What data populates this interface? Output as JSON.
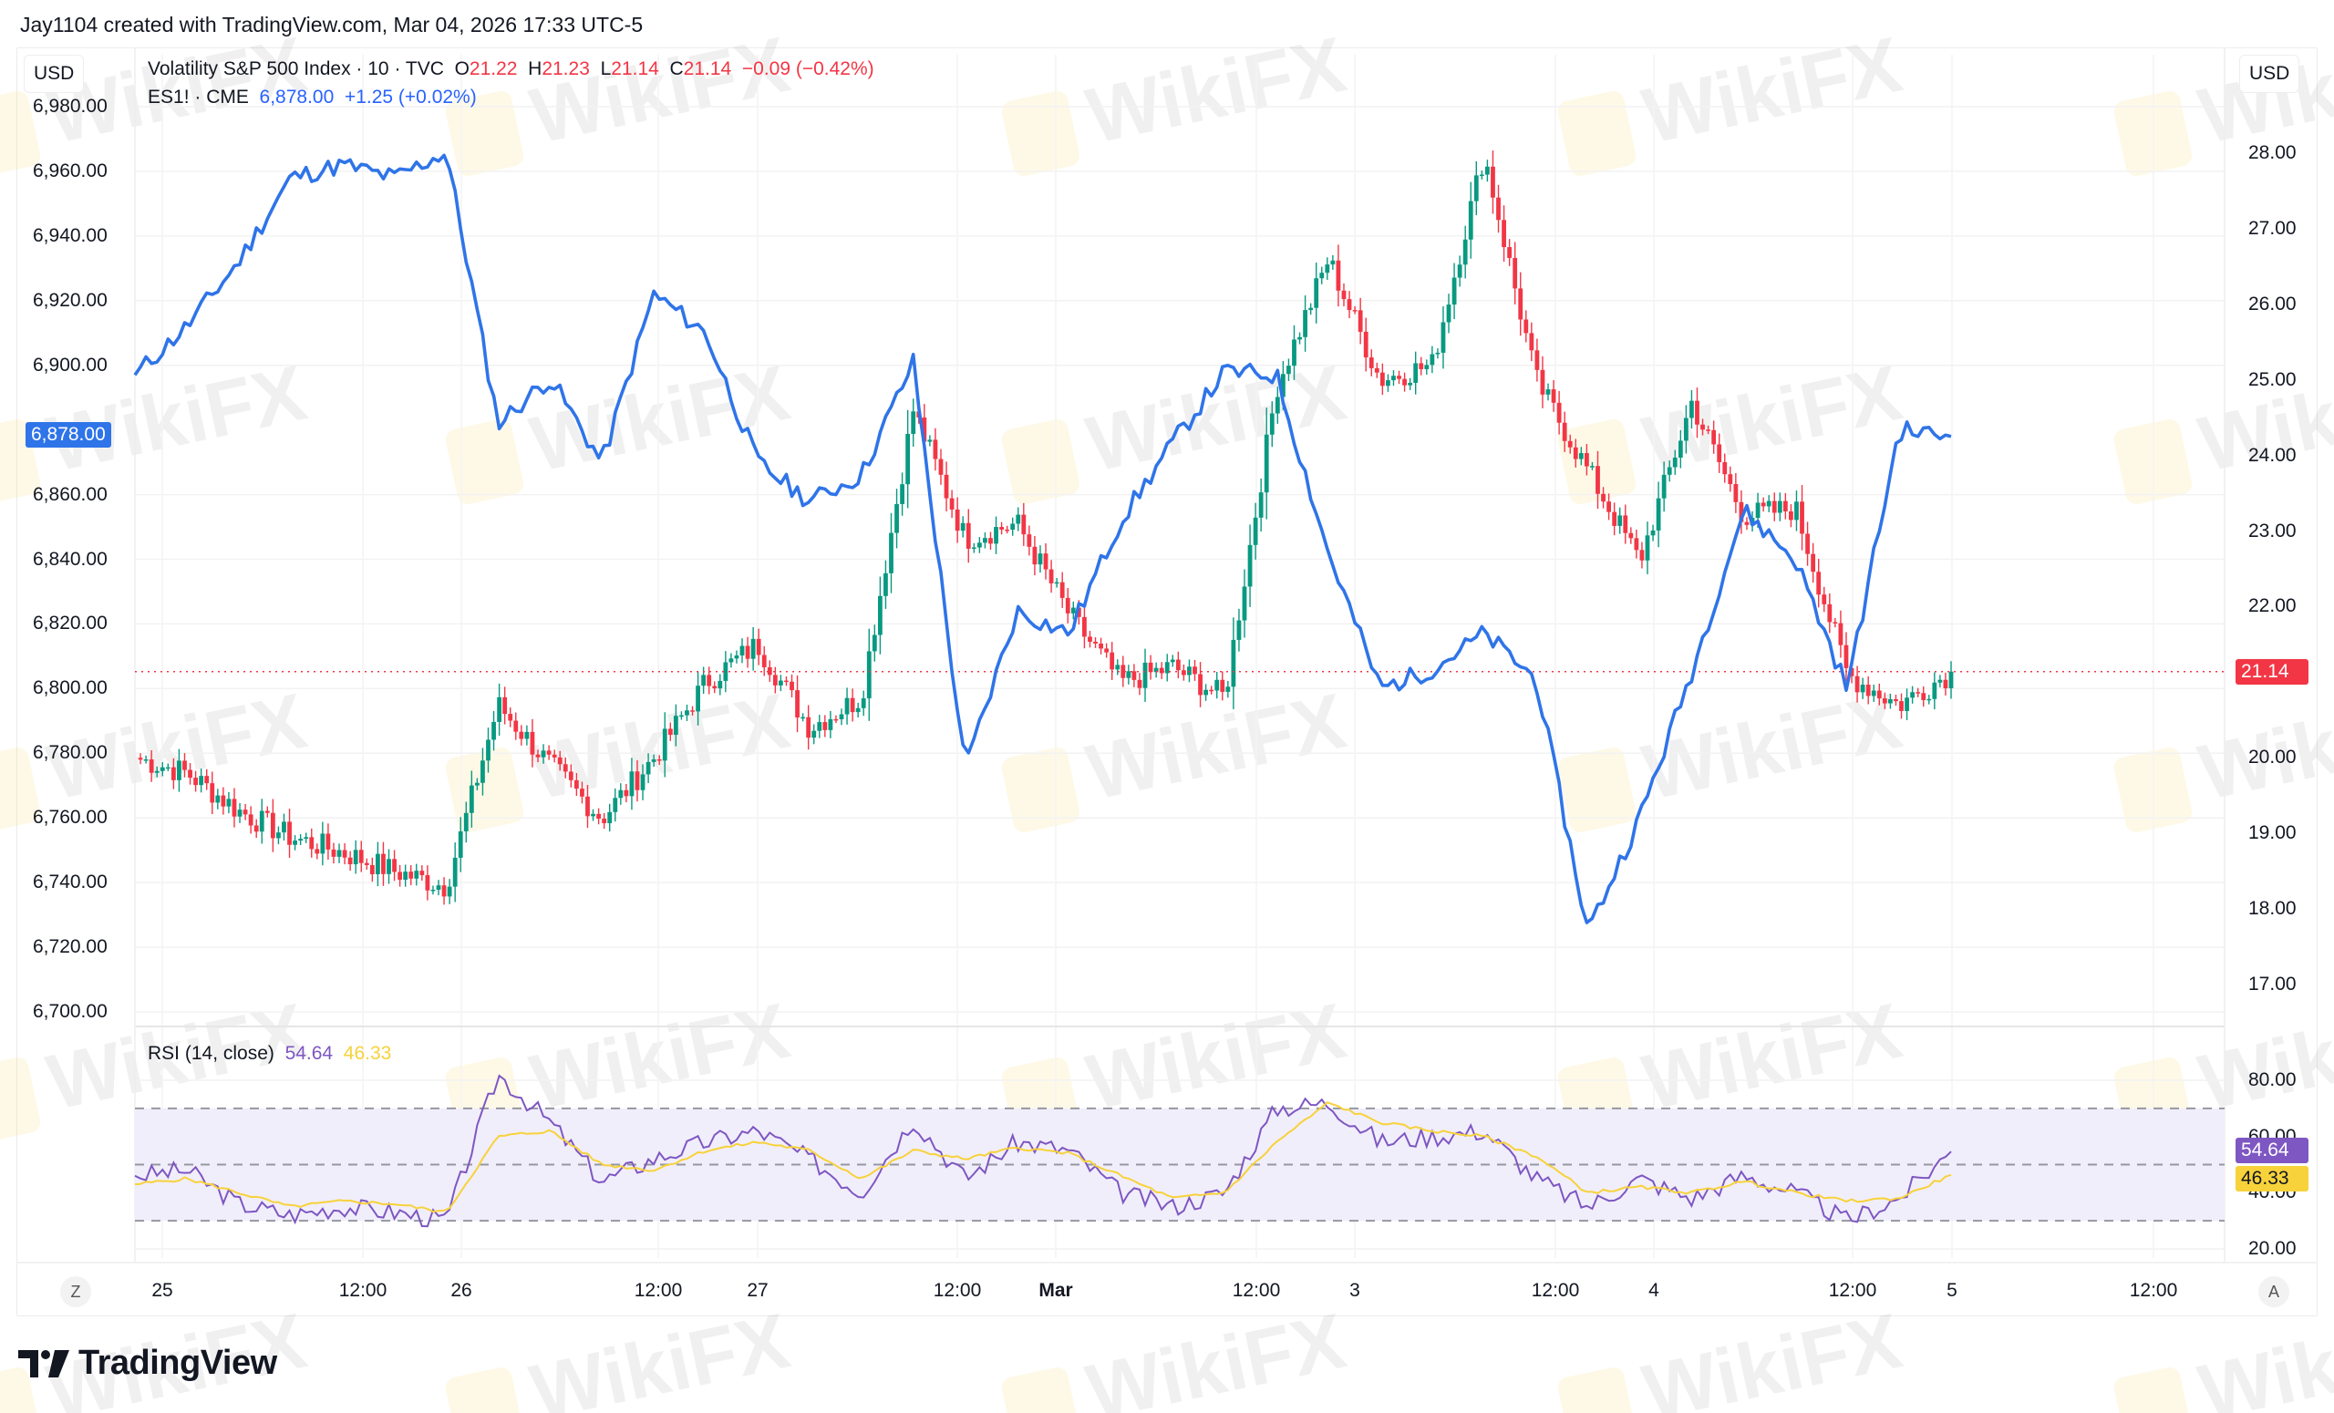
{
  "header": {
    "text": "Jay1104 created with TradingView.com, Mar 04, 2026 17:33 UTC-5"
  },
  "main_pane": {
    "left_currency": "USD",
    "right_currency": "USD",
    "legend_vix": {
      "title": "Volatility S&P 500 Index · 10 · TVC",
      "o_label": "O",
      "o_value": "21.22",
      "h_label": "H",
      "h_value": "21.23",
      "l_label": "L",
      "l_value": "21.14",
      "c_label": "C",
      "c_value": "21.14",
      "change": "−0.09 (−0.42%)"
    },
    "legend_es": {
      "title": "ES1! · CME",
      "price": "6,878.00",
      "change": "+1.25 (+0.02%)"
    },
    "left_axis_ticks": [
      "6,980.00",
      "6,960.00",
      "6,940.00",
      "6,920.00",
      "6,900.00",
      "6,860.00",
      "6,840.00",
      "6,820.00",
      "6,800.00",
      "6,780.00",
      "6,760.00",
      "6,740.00",
      "6,720.00",
      "6,700.00"
    ],
    "right_axis_ticks": [
      "28.00",
      "27.00",
      "26.00",
      "25.00",
      "24.00",
      "23.00",
      "22.00",
      "20.00",
      "19.00",
      "18.00",
      "17.00"
    ],
    "es_last_price_tag": "6,878.00",
    "vix_last_price_tag": "21.14"
  },
  "rsi_pane": {
    "title": "RSI (14, close)",
    "rsi_value": "54.64",
    "ma_value": "46.33",
    "axis_ticks": [
      "80.00",
      "60.00",
      "40.00",
      "20.00"
    ],
    "rsi_tag": "54.64",
    "ma_tag": "46.33"
  },
  "time_axis": {
    "labels": [
      {
        "text": "25",
        "bold": false
      },
      {
        "text": "12:00",
        "bold": false
      },
      {
        "text": "26",
        "bold": false
      },
      {
        "text": "12:00",
        "bold": false
      },
      {
        "text": "27",
        "bold": false
      },
      {
        "text": "12:00",
        "bold": false
      },
      {
        "text": "Mar",
        "bold": true
      },
      {
        "text": "12:00",
        "bold": false
      },
      {
        "text": "3",
        "bold": false
      },
      {
        "text": "12:00",
        "bold": false
      },
      {
        "text": "4",
        "bold": false
      },
      {
        "text": "12:00",
        "bold": false
      },
      {
        "text": "5",
        "bold": false
      },
      {
        "text": "12:00",
        "bold": false
      }
    ],
    "left_button": "Z",
    "right_button": "A"
  },
  "footer": {
    "logo_text": "TradingView"
  },
  "watermark": {
    "text": "WikiFX"
  },
  "colors": {
    "es_line": "#2f74e8",
    "candle_up": "#089981",
    "candle_down": "#f23645",
    "rsi_line": "#7e57c2",
    "rsi_ma": "#f7d23a",
    "rsi_band_fill": "#f1eefb",
    "es_tag_bg": "#2f74e8",
    "vix_tag_bg": "#f23645"
  },
  "chart_data": [
    {
      "type": "line",
      "title": "ES1! · CME (E-mini S&P 500 futures), 10-minute",
      "series_name": "ES1!",
      "axis": "left",
      "ylabel": "USD",
      "ylim": [
        6700,
        6985
      ],
      "x": [
        "Feb 25 00:00",
        "Feb 25 06:00",
        "Feb 25 12:00",
        "Feb 25 18:00",
        "Feb 26 00:00",
        "Feb 26 06:00",
        "Feb 26 09:30",
        "Feb 26 10:00",
        "Feb 26 12:00",
        "Feb 26 15:00",
        "Feb 27 00:00",
        "Feb 27 06:00",
        "Feb 27 09:30",
        "Feb 27 12:00",
        "Feb 27 16:00",
        "Mar 1 18:00",
        "Mar 2 00:00",
        "Mar 2 06:00",
        "Mar 2 09:30",
        "Mar 2 12:00",
        "Mar 2 15:00",
        "Mar 2 16:00",
        "Mar 3 00:00",
        "Mar 3 03:00",
        "Mar 3 06:00",
        "Mar 3 09:00",
        "Mar 3 10:00",
        "Mar 3 12:00",
        "Mar 3 15:00",
        "Mar 3 16:00",
        "Mar 4 00:00",
        "Mar 4 06:00",
        "Mar 4 09:00",
        "Mar 4 10:00",
        "Mar 4 12:00",
        "Mar 4 16:00"
      ],
      "values": [
        6897,
        6912,
        6932,
        6958,
        6962,
        6958,
        6966,
        6882,
        6896,
        6870,
        6922,
        6910,
        6870,
        6858,
        6866,
        6901,
        6775,
        6824,
        6817,
        6852,
        6876,
        6898,
        6897,
        6842,
        6800,
        6806,
        6817,
        6803,
        6725,
        6760,
        6805,
        6855,
        6840,
        6800,
        6880,
        6878
      ],
      "last": 6878.0,
      "change": 1.25,
      "change_pct": 0.02
    },
    {
      "type": "candlestick",
      "title": "Volatility S&P 500 Index · 10 · TVC",
      "series_name": "VIX",
      "axis": "right",
      "ylabel": "USD",
      "ylim": [
        16.6,
        28.4
      ],
      "x": [
        "Feb 25 00:00",
        "Feb 25 06:00",
        "Feb 25 12:00",
        "Feb 25 18:00",
        "Feb 26 00:00",
        "Feb 26 06:00",
        "Feb 26 09:30",
        "Feb 26 10:00",
        "Feb 26 12:00",
        "Feb 26 15:00",
        "Feb 27 00:00",
        "Feb 27 06:00",
        "Feb 27 09:30",
        "Feb 27 12:00",
        "Feb 27 16:00",
        "Mar 1 18:00",
        "Mar 2 00:00",
        "Mar 2 06:00",
        "Mar 2 09:30",
        "Mar 2 12:00",
        "Mar 2 15:00",
        "Mar 2 16:00",
        "Mar 3 00:00",
        "Mar 3 03:00",
        "Mar 3 06:00",
        "Mar 3 09:00",
        "Mar 3 10:00",
        "Mar 3 12:00",
        "Mar 3 15:00",
        "Mar 3 16:00",
        "Mar 4 00:00",
        "Mar 4 06:00",
        "Mar 4 09:00",
        "Mar 4 10:00",
        "Mar 4 12:00",
        "Mar 4 16:00"
      ],
      "values": [
        20.0,
        19.8,
        19.3,
        18.95,
        18.75,
        18.5,
        18.3,
        20.7,
        19.9,
        19.2,
        20.0,
        21.0,
        21.5,
        20.4,
        20.8,
        24.6,
        22.9,
        23.1,
        21.9,
        21.0,
        21.2,
        20.8,
        24.9,
        26.6,
        25.0,
        25.2,
        28.0,
        25.0,
        23.8,
        22.6,
        24.7,
        23.2,
        23.3,
        21.1,
        20.7,
        21.14
      ],
      "open": 21.22,
      "high": 21.23,
      "low": 21.14,
      "close": 21.14,
      "change": -0.09,
      "change_pct": -0.42
    },
    {
      "type": "line",
      "title": "RSI (14, close)",
      "ylim": [
        15,
        85
      ],
      "bands": {
        "upper": 70,
        "middle": 50,
        "lower": 30
      },
      "series": [
        {
          "name": "RSI",
          "values": [
            46,
            48,
            36,
            32,
            35,
            33,
            30,
            82,
            65,
            44,
            52,
            58,
            62,
            52,
            40,
            66,
            45,
            58,
            55,
            40,
            35,
            40,
            70,
            72,
            58,
            60,
            62,
            45,
            35,
            45,
            38,
            46,
            40,
            30,
            38,
            54.64
          ],
          "last": 54.64
        },
        {
          "name": "RSI-based MA",
          "values": [
            43,
            45,
            40,
            35,
            37,
            36,
            33,
            60,
            62,
            50,
            48,
            55,
            58,
            55,
            45,
            55,
            52,
            56,
            54,
            46,
            38,
            40,
            58,
            72,
            65,
            62,
            60,
            53,
            40,
            42,
            40,
            44,
            40,
            37,
            38,
            46.33
          ],
          "last": 46.33
        }
      ]
    }
  ]
}
